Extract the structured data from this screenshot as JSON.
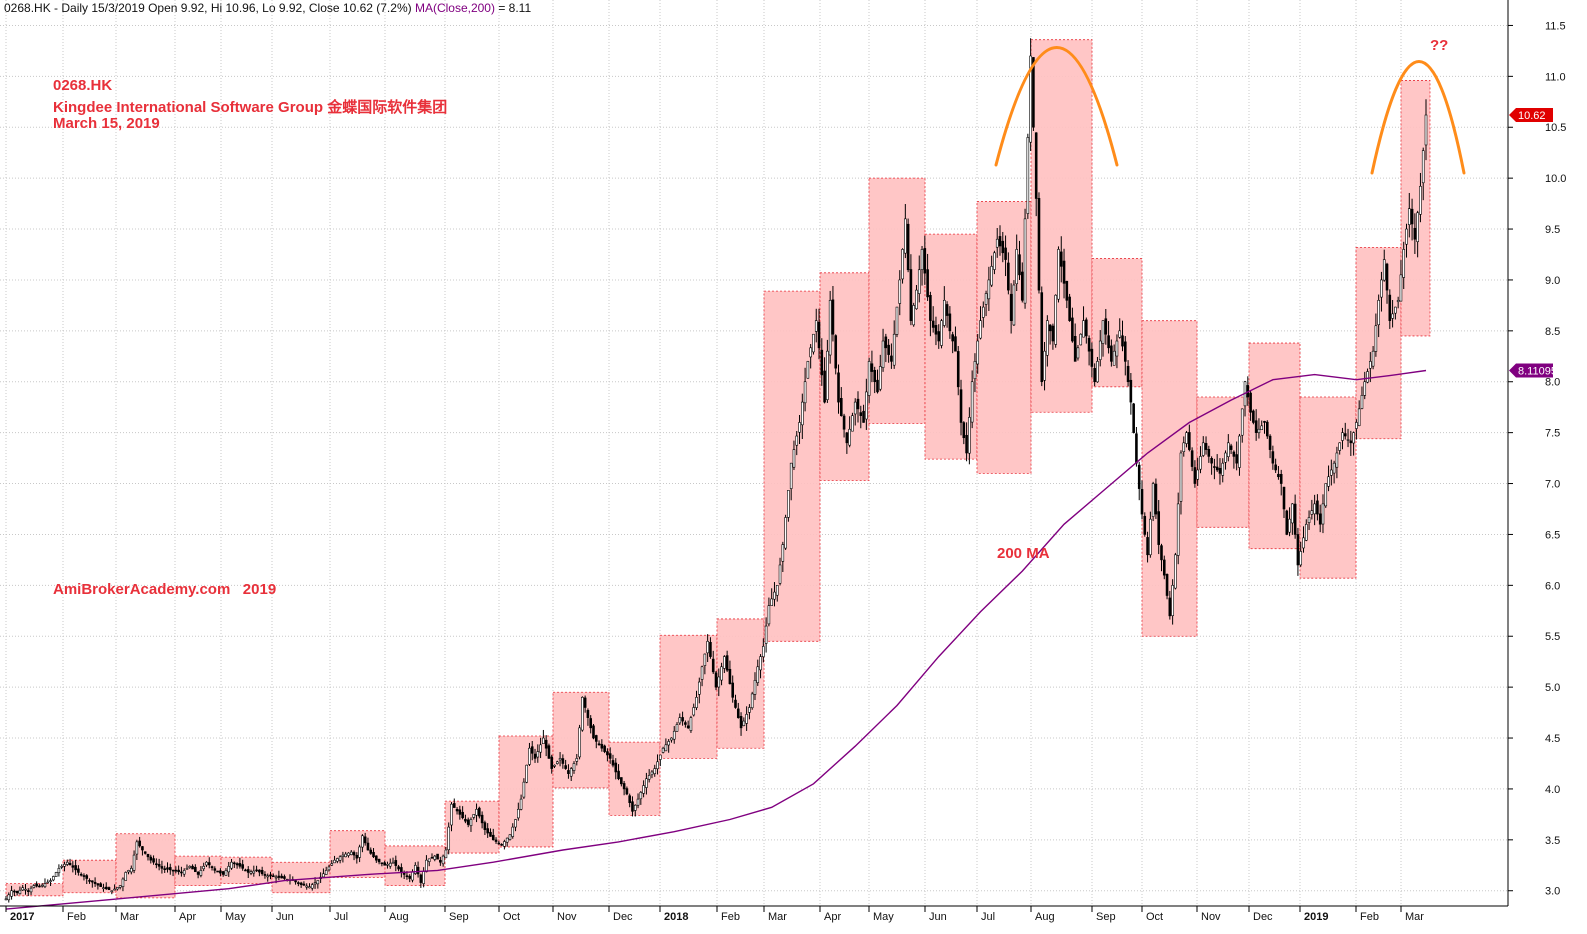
{
  "header": {
    "symbol": "0268.HK",
    "prefix": "- Daily 15/3/2019 Open 9.92, Hi 10.96, Lo 9.92, Close 10.62 (7.2%)",
    "ma_text": "MA(Close,200)",
    "ma_value_text": "= 8.11"
  },
  "annotations": {
    "ticker": "0268.HK",
    "company": "Kingdee International Software Group 金蝶国际软件集团",
    "date": "March 15, 2019",
    "watermark": "AmiBrokerAcademy.com   2019",
    "ma_label": "200 MA",
    "question": "??"
  },
  "colors": {
    "candle": "#000000",
    "ma": "#800080",
    "box_fill": "#ffc0c0",
    "box_stroke": "#e8303a",
    "arc": "#ff8c1a",
    "text_red": "#e8303a",
    "grid": "#c8c8c8",
    "price_tag": "#e00000",
    "ma_tag": "#800080"
  },
  "chart_data": {
    "type": "candlestick",
    "ylim": [
      2.85,
      11.75
    ],
    "yticks": [
      3.0,
      3.5,
      4.0,
      4.5,
      5.0,
      5.5,
      6.0,
      6.5,
      7.0,
      7.5,
      8.0,
      8.5,
      9.0,
      9.5,
      10.0,
      10.5,
      11.0,
      11.5
    ],
    "ytick_labels": [
      "3.0",
      "3.5",
      "4.0",
      "4.5",
      "5.0",
      "5.5",
      "6.0",
      "6.5",
      "7.0",
      "7.5",
      "8.0",
      "8.5",
      "9.0",
      "9.5",
      "10.0",
      "10.5",
      "11.0",
      "11.5"
    ],
    "months": [
      {
        "label": "2017",
        "year": true
      },
      {
        "label": "Feb"
      },
      {
        "label": "Mar"
      },
      {
        "label": "Apr"
      },
      {
        "label": "May"
      },
      {
        "label": "Jun"
      },
      {
        "label": "Jul"
      },
      {
        "label": "Aug"
      },
      {
        "label": "Sep"
      },
      {
        "label": "Oct"
      },
      {
        "label": "Nov"
      },
      {
        "label": "Dec"
      },
      {
        "label": "2018",
        "year": true
      },
      {
        "label": "Feb"
      },
      {
        "label": "Mar"
      },
      {
        "label": "Apr"
      },
      {
        "label": "May"
      },
      {
        "label": "Jun"
      },
      {
        "label": "Jul"
      },
      {
        "label": "Aug"
      },
      {
        "label": "Sep"
      },
      {
        "label": "Oct"
      },
      {
        "label": "Nov"
      },
      {
        "label": "Dec"
      },
      {
        "label": "2019",
        "year": true
      },
      {
        "label": "Feb"
      },
      {
        "label": "Mar"
      }
    ],
    "monthly_ranges": [
      {
        "month": "2017-01",
        "low": 2.95,
        "high": 3.07
      },
      {
        "month": "2017-02",
        "low": 2.98,
        "high": 3.3
      },
      {
        "month": "2017-03",
        "low": 2.93,
        "high": 3.56
      },
      {
        "month": "2017-04",
        "low": 3.05,
        "high": 3.34
      },
      {
        "month": "2017-05",
        "low": 3.07,
        "high": 3.33
      },
      {
        "month": "2017-06",
        "low": 2.98,
        "high": 3.28
      },
      {
        "month": "2017-07",
        "low": 3.13,
        "high": 3.59
      },
      {
        "month": "2017-08",
        "low": 3.05,
        "high": 3.44
      },
      {
        "month": "2017-09",
        "low": 3.37,
        "high": 3.88
      },
      {
        "month": "2017-10",
        "low": 3.43,
        "high": 4.52
      },
      {
        "month": "2017-11",
        "low": 4.01,
        "high": 4.95
      },
      {
        "month": "2017-12",
        "low": 3.74,
        "high": 4.46
      },
      {
        "month": "2018-01",
        "low": 4.3,
        "high": 5.51
      },
      {
        "month": "2018-02",
        "low": 4.4,
        "high": 5.67
      },
      {
        "month": "2018-03",
        "low": 5.45,
        "high": 8.89
      },
      {
        "month": "2018-04",
        "low": 7.03,
        "high": 9.07
      },
      {
        "month": "2018-05",
        "low": 7.59,
        "high": 10.0
      },
      {
        "month": "2018-06",
        "low": 7.24,
        "high": 9.45
      },
      {
        "month": "2018-07",
        "low": 7.1,
        "high": 9.77
      },
      {
        "month": "2018-08",
        "low": 7.7,
        "high": 11.36
      },
      {
        "month": "2018-09",
        "low": 7.95,
        "high": 9.21
      },
      {
        "month": "2018-10",
        "low": 5.5,
        "high": 8.6
      },
      {
        "month": "2018-11",
        "low": 6.57,
        "high": 7.85
      },
      {
        "month": "2018-12",
        "low": 6.36,
        "high": 8.38
      },
      {
        "month": "2019-01",
        "low": 6.07,
        "high": 7.85
      },
      {
        "month": "2019-02",
        "low": 7.44,
        "high": 9.32
      },
      {
        "month": "2019-03",
        "low": 8.45,
        "high": 10.96
      }
    ],
    "price_path": [
      [
        0,
        2.92
      ],
      [
        2,
        3.0
      ],
      [
        4,
        2.98
      ],
      [
        6,
        3.03
      ],
      [
        8,
        3.0
      ],
      [
        10,
        3.05
      ],
      [
        12,
        3.04
      ],
      [
        16,
        3.1
      ],
      [
        19,
        3.22
      ],
      [
        22,
        3.28
      ],
      [
        26,
        3.18
      ],
      [
        30,
        3.1
      ],
      [
        34,
        3.04
      ],
      [
        38,
        3.0
      ],
      [
        41,
        3.05
      ],
      [
        43,
        3.18
      ],
      [
        45,
        3.22
      ],
      [
        47,
        3.48
      ],
      [
        49,
        3.4
      ],
      [
        52,
        3.3
      ],
      [
        56,
        3.22
      ],
      [
        60,
        3.2
      ],
      [
        63,
        3.18
      ],
      [
        66,
        3.24
      ],
      [
        69,
        3.16
      ],
      [
        72,
        3.28
      ],
      [
        75,
        3.2
      ],
      [
        78,
        3.16
      ],
      [
        81,
        3.28
      ],
      [
        84,
        3.24
      ],
      [
        87,
        3.18
      ],
      [
        90,
        3.2
      ],
      [
        93,
        3.15
      ],
      [
        96,
        3.14
      ],
      [
        100,
        3.12
      ],
      [
        103,
        3.1
      ],
      [
        106,
        3.06
      ],
      [
        109,
        3.04
      ],
      [
        112,
        3.1
      ],
      [
        115,
        3.2
      ],
      [
        118,
        3.3
      ],
      [
        121,
        3.35
      ],
      [
        124,
        3.38
      ],
      [
        126,
        3.32
      ],
      [
        128,
        3.54
      ],
      [
        130,
        3.4
      ],
      [
        133,
        3.3
      ],
      [
        136,
        3.25
      ],
      [
        139,
        3.28
      ],
      [
        142,
        3.18
      ],
      [
        145,
        3.12
      ],
      [
        147,
        3.25
      ],
      [
        149,
        3.08
      ],
      [
        151,
        3.3
      ],
      [
        154,
        3.34
      ],
      [
        156,
        3.28
      ],
      [
        158,
        3.4
      ],
      [
        160,
        3.85
      ],
      [
        163,
        3.75
      ],
      [
        166,
        3.65
      ],
      [
        169,
        3.8
      ],
      [
        172,
        3.6
      ],
      [
        175,
        3.5
      ],
      [
        178,
        3.45
      ],
      [
        181,
        3.55
      ],
      [
        183,
        3.7
      ],
      [
        185,
        3.9
      ],
      [
        188,
        4.4
      ],
      [
        190,
        4.3
      ],
      [
        193,
        4.5
      ],
      [
        196,
        4.2
      ],
      [
        199,
        4.3
      ],
      [
        202,
        4.15
      ],
      [
        205,
        4.3
      ],
      [
        207,
        4.9
      ],
      [
        209,
        4.7
      ],
      [
        211,
        4.5
      ],
      [
        214,
        4.4
      ],
      [
        217,
        4.3
      ],
      [
        220,
        4.1
      ],
      [
        223,
        3.95
      ],
      [
        225,
        3.78
      ],
      [
        227,
        3.9
      ],
      [
        230,
        4.1
      ],
      [
        233,
        4.2
      ],
      [
        236,
        4.4
      ],
      [
        239,
        4.5
      ],
      [
        242,
        4.7
      ],
      [
        245,
        4.6
      ],
      [
        248,
        4.9
      ],
      [
        250,
        5.2
      ],
      [
        252,
        5.45
      ],
      [
        255,
        5.0
      ],
      [
        258,
        5.3
      ],
      [
        261,
        4.9
      ],
      [
        264,
        4.6
      ],
      [
        267,
        4.8
      ],
      [
        270,
        5.2
      ],
      [
        272,
        5.4
      ],
      [
        274,
        5.8
      ],
      [
        277,
        6.0
      ],
      [
        279,
        6.4
      ],
      [
        282,
        7.2
      ],
      [
        285,
        7.6
      ],
      [
        288,
        8.2
      ],
      [
        291,
        8.6
      ],
      [
        294,
        7.8
      ],
      [
        296,
        8.8
      ],
      [
        299,
        7.8
      ],
      [
        302,
        7.4
      ],
      [
        305,
        7.8
      ],
      [
        308,
        7.6
      ],
      [
        310,
        8.2
      ],
      [
        313,
        7.9
      ],
      [
        315,
        8.4
      ],
      [
        318,
        8.2
      ],
      [
        321,
        9.0
      ],
      [
        323,
        9.6
      ],
      [
        325,
        8.6
      ],
      [
        327,
        8.9
      ],
      [
        329,
        9.3
      ],
      [
        332,
        8.6
      ],
      [
        335,
        8.4
      ],
      [
        337,
        8.8
      ],
      [
        339,
        8.5
      ],
      [
        341,
        8.3
      ],
      [
        343,
        7.6
      ],
      [
        345,
        7.3
      ],
      [
        347,
        8.0
      ],
      [
        350,
        8.6
      ],
      [
        353,
        9.0
      ],
      [
        356,
        9.4
      ],
      [
        359,
        9.2
      ],
      [
        361,
        8.6
      ],
      [
        363,
        9.3
      ],
      [
        365,
        8.8
      ],
      [
        368,
        11.2
      ],
      [
        370,
        9.8
      ],
      [
        372,
        8.0
      ],
      [
        374,
        8.6
      ],
      [
        376,
        8.4
      ],
      [
        378,
        9.3
      ],
      [
        381,
        8.8
      ],
      [
        384,
        8.2
      ],
      [
        387,
        8.6
      ],
      [
        389,
        8.3
      ],
      [
        391,
        8.0
      ],
      [
        394,
        8.6
      ],
      [
        397,
        8.2
      ],
      [
        400,
        8.5
      ],
      [
        402,
        8.2
      ],
      [
        404,
        7.8
      ],
      [
        406,
        7.2
      ],
      [
        408,
        6.7
      ],
      [
        410,
        6.3
      ],
      [
        412,
        7.0
      ],
      [
        414,
        6.4
      ],
      [
        416,
        6.1
      ],
      [
        418,
        5.7
      ],
      [
        420,
        6.3
      ],
      [
        422,
        7.3
      ],
      [
        424,
        7.5
      ],
      [
        427,
        7.0
      ],
      [
        430,
        7.4
      ],
      [
        433,
        7.2
      ],
      [
        436,
        7.1
      ],
      [
        439,
        7.4
      ],
      [
        442,
        7.2
      ],
      [
        445,
        8.0
      ],
      [
        447,
        7.7
      ],
      [
        449,
        7.5
      ],
      [
        452,
        7.6
      ],
      [
        455,
        7.2
      ],
      [
        458,
        7.0
      ],
      [
        460,
        6.5
      ],
      [
        462,
        6.8
      ],
      [
        464,
        6.2
      ],
      [
        467,
        6.6
      ],
      [
        470,
        6.8
      ],
      [
        472,
        6.6
      ],
      [
        474,
        7.0
      ],
      [
        477,
        7.2
      ],
      [
        480,
        7.5
      ],
      [
        483,
        7.4
      ],
      [
        485,
        7.6
      ],
      [
        488,
        8.0
      ],
      [
        491,
        8.3
      ],
      [
        493,
        8.8
      ],
      [
        495,
        9.2
      ],
      [
        497,
        8.6
      ],
      [
        500,
        8.8
      ],
      [
        502,
        9.3
      ],
      [
        504,
        9.7
      ],
      [
        506,
        9.4
      ],
      [
        508,
        9.92
      ],
      [
        510,
        10.62
      ]
    ],
    "ma200": [
      [
        0,
        2.82
      ],
      [
        40,
        2.92
      ],
      [
        80,
        3.02
      ],
      [
        100,
        3.1
      ],
      [
        130,
        3.16
      ],
      [
        155,
        3.2
      ],
      [
        175,
        3.28
      ],
      [
        200,
        3.4
      ],
      [
        220,
        3.48
      ],
      [
        240,
        3.58
      ],
      [
        260,
        3.7
      ],
      [
        275,
        3.82
      ],
      [
        290,
        4.05
      ],
      [
        305,
        4.42
      ],
      [
        320,
        4.82
      ],
      [
        335,
        5.3
      ],
      [
        350,
        5.74
      ],
      [
        365,
        6.14
      ],
      [
        380,
        6.6
      ],
      [
        395,
        6.95
      ],
      [
        410,
        7.3
      ],
      [
        425,
        7.6
      ],
      [
        440,
        7.82
      ],
      [
        455,
        8.02
      ],
      [
        470,
        8.07
      ],
      [
        485,
        8.02
      ],
      [
        497,
        8.06
      ],
      [
        510,
        8.11
      ]
    ],
    "last_close": 10.62,
    "ma_last": 8.11,
    "last_close_label": "10.62",
    "ma_last_label": "8.11095"
  }
}
